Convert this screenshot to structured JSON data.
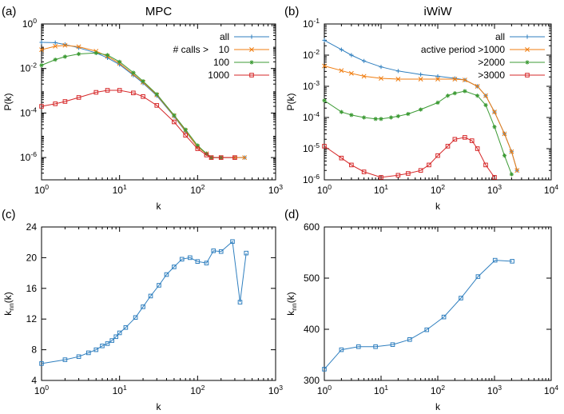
{
  "chart_data": [
    {
      "id": "a",
      "type": "line",
      "panel_label": "(a)",
      "title": "MPC",
      "xlabel": "k",
      "ylabel": "P(k)",
      "xscale": "log",
      "yscale": "log",
      "xlim": [
        1,
        1000
      ],
      "ylim": [
        1e-07,
        1
      ],
      "x_ticks": [
        {
          "v": 1,
          "b": "10",
          "e": "0"
        },
        {
          "v": 10,
          "b": "10",
          "e": "1"
        },
        {
          "v": 100,
          "b": "10",
          "e": "2"
        },
        {
          "v": 1000,
          "b": "10",
          "e": "3"
        }
      ],
      "y_ticks": [
        {
          "v": 1e-06,
          "b": "10",
          "e": "-6"
        },
        {
          "v": 0.0001,
          "b": "10",
          "e": "-4"
        },
        {
          "v": 0.01,
          "b": "10",
          "e": "-2"
        },
        {
          "v": 1,
          "b": "10",
          "e": "0"
        }
      ],
      "legend_title": "# calls >",
      "legend_position": "top-right",
      "series": [
        {
          "name": "all",
          "color": "#2f7fbf",
          "marker": "plus",
          "x": [
            1,
            1.5,
            2,
            3,
            5,
            7,
            10,
            15,
            20,
            30,
            50,
            70,
            100,
            130,
            150,
            200,
            300,
            400
          ],
          "y": [
            0.15,
            0.145,
            0.12,
            0.085,
            0.05,
            0.03,
            0.015,
            0.005,
            0.0022,
            0.0006,
            7e-05,
            1.5e-05,
            3e-06,
            1.5e-06,
            1e-06,
            1e-06,
            1e-06,
            1e-06
          ]
        },
        {
          "name": "10",
          "color": "#f07d10",
          "marker": "x",
          "x": [
            1,
            1.5,
            2,
            3,
            5,
            7,
            10,
            15,
            20,
            30,
            50,
            70,
            100,
            130,
            150,
            200,
            300,
            400
          ],
          "y": [
            0.07,
            0.1,
            0.11,
            0.095,
            0.06,
            0.035,
            0.017,
            0.0055,
            0.0024,
            0.00065,
            7.5e-05,
            1.6e-05,
            3e-06,
            1.5e-06,
            1e-06,
            1e-06,
            1e-06,
            1e-06
          ]
        },
        {
          "name": "100",
          "color": "#3d9b35",
          "marker": "star",
          "x": [
            1,
            1.5,
            2,
            3,
            5,
            7,
            10,
            15,
            20,
            30,
            50,
            70,
            100,
            130,
            150,
            200
          ],
          "y": [
            0.014,
            0.025,
            0.034,
            0.045,
            0.05,
            0.04,
            0.02,
            0.0065,
            0.0027,
            0.0007,
            8e-05,
            1.8e-05,
            3.5e-06,
            1.5e-06,
            1e-06,
            1e-06
          ]
        },
        {
          "name": "1000",
          "color": "#d62728",
          "marker": "square",
          "x": [
            1,
            1.5,
            2,
            3,
            5,
            7,
            10,
            15,
            20,
            30,
            50,
            70,
            100,
            130,
            150,
            200,
            300
          ],
          "y": [
            0.0002,
            0.00026,
            0.00033,
            0.0005,
            0.00085,
            0.00105,
            0.00105,
            0.0008,
            0.00055,
            0.00022,
            4e-05,
            1e-05,
            2.5e-06,
            1.3e-06,
            1e-06,
            1e-06,
            1e-06
          ]
        }
      ]
    },
    {
      "id": "b",
      "type": "line",
      "panel_label": "(b)",
      "title": "iWiW",
      "xlabel": "k",
      "ylabel": "P(k)",
      "xscale": "log",
      "yscale": "log",
      "xlim": [
        1,
        10000
      ],
      "ylim": [
        1e-06,
        0.1
      ],
      "x_ticks": [
        {
          "v": 1,
          "b": "10",
          "e": "0"
        },
        {
          "v": 10,
          "b": "10",
          "e": "1"
        },
        {
          "v": 100,
          "b": "10",
          "e": "2"
        },
        {
          "v": 1000,
          "b": "10",
          "e": "3"
        },
        {
          "v": 10000,
          "b": "10",
          "e": "4"
        }
      ],
      "y_ticks": [
        {
          "v": 1e-06,
          "b": "10",
          "e": "-6"
        },
        {
          "v": 1e-05,
          "b": "10",
          "e": "-5"
        },
        {
          "v": 0.0001,
          "b": "10",
          "e": "-4"
        },
        {
          "v": 0.001,
          "b": "10",
          "e": "-3"
        },
        {
          "v": 0.01,
          "b": "10",
          "e": "-2"
        },
        {
          "v": 0.1,
          "b": "10",
          "e": "-1"
        }
      ],
      "legend_title": "",
      "legend_position": "top-right",
      "series": [
        {
          "name": "all",
          "color": "#2f7fbf",
          "marker": "plus",
          "x": [
            1,
            2,
            3,
            5,
            10,
            20,
            50,
            100,
            200,
            300,
            500,
            700,
            1000,
            1500,
            2000,
            2500
          ],
          "y": [
            0.03,
            0.015,
            0.01,
            0.0065,
            0.0042,
            0.0031,
            0.0024,
            0.0021,
            0.0018,
            0.0016,
            0.001,
            0.0005,
            0.00015,
            3e-05,
            8e-06,
            2e-06
          ]
        },
        {
          "name": "active period >1000",
          "color": "#f07d10",
          "marker": "x",
          "x": [
            1,
            2,
            3,
            5,
            10,
            20,
            50,
            100,
            200,
            300,
            500,
            700,
            1000,
            1500,
            2000,
            2500
          ],
          "y": [
            0.0045,
            0.0032,
            0.0026,
            0.0021,
            0.0018,
            0.0017,
            0.0017,
            0.0017,
            0.0017,
            0.0016,
            0.001,
            0.0005,
            0.00015,
            3e-05,
            8e-06,
            2e-06
          ]
        },
        {
          "name": ">2000",
          "color": "#3d9b35",
          "marker": "star",
          "x": [
            1,
            2,
            3,
            5,
            8,
            10,
            15,
            20,
            30,
            50,
            100,
            150,
            200,
            300,
            500,
            700,
            1000,
            1500,
            2000
          ],
          "y": [
            0.00035,
            0.00015,
            0.00012,
            0.0001,
            9e-05,
            9e-05,
            0.0001,
            0.00011,
            0.00013,
            0.00018,
            0.0003,
            0.0005,
            0.0006,
            0.0007,
            0.0005,
            0.00025,
            5e-05,
            6e-06,
            1.5e-06
          ]
        },
        {
          "name": ">3000",
          "color": "#d62728",
          "marker": "square",
          "x": [
            1,
            2,
            3,
            5,
            10,
            20,
            30,
            50,
            70,
            100,
            150,
            200,
            300,
            400,
            500,
            700,
            1000
          ],
          "y": [
            1.2e-05,
            5e-06,
            3e-06,
            1.8e-06,
            1.2e-06,
            1.4e-06,
            1.6e-06,
            2e-06,
            3e-06,
            6e-06,
            1.2e-05,
            2e-05,
            2.3e-05,
            1.8e-05,
            1e-05,
            3e-06,
            1.2e-06
          ]
        }
      ]
    },
    {
      "id": "c",
      "type": "line",
      "panel_label": "(c)",
      "title": "",
      "xlabel": "k",
      "ylabel": "knn(k)",
      "ylabel_main": "k",
      "ylabel_sub": "nn",
      "ylabel_tail": "(k)",
      "xscale": "log",
      "yscale": "linear",
      "xlim": [
        1,
        1000
      ],
      "ylim": [
        4,
        24
      ],
      "x_ticks": [
        {
          "v": 1,
          "b": "10",
          "e": "0"
        },
        {
          "v": 10,
          "b": "10",
          "e": "1"
        },
        {
          "v": 100,
          "b": "10",
          "e": "2"
        },
        {
          "v": 1000,
          "b": "10",
          "e": "3"
        }
      ],
      "y_ticks": [
        {
          "v": 4,
          "t": "4"
        },
        {
          "v": 8,
          "t": "8"
        },
        {
          "v": 12,
          "t": "12"
        },
        {
          "v": 16,
          "t": "16"
        },
        {
          "v": 20,
          "t": "20"
        },
        {
          "v": 24,
          "t": "24"
        }
      ],
      "series": [
        {
          "name": "knn",
          "color": "#2f7fbf",
          "marker": "square",
          "x": [
            1,
            2,
            3,
            4,
            5,
            6,
            7,
            8,
            9,
            10,
            12,
            16,
            20,
            25,
            32,
            40,
            50,
            63,
            80,
            100,
            130,
            160,
            200,
            280,
            350,
            420
          ],
          "y": [
            6.2,
            6.7,
            7.1,
            7.6,
            8.0,
            8.5,
            8.8,
            9.2,
            9.7,
            10.2,
            10.9,
            12.2,
            13.6,
            15.0,
            16.4,
            17.8,
            18.8,
            19.8,
            20.0,
            19.5,
            19.3,
            20.9,
            20.8,
            22.1,
            14.2,
            20.6
          ]
        }
      ]
    },
    {
      "id": "d",
      "type": "line",
      "panel_label": "(d)",
      "title": "",
      "xlabel": "k",
      "ylabel": "knn(k)",
      "ylabel_main": "k",
      "ylabel_sub": "nn",
      "ylabel_tail": "(k)",
      "xscale": "log",
      "yscale": "linear",
      "xlim": [
        1,
        10000
      ],
      "ylim": [
        300,
        600
      ],
      "x_ticks": [
        {
          "v": 1,
          "b": "10",
          "e": "0"
        },
        {
          "v": 10,
          "b": "10",
          "e": "1"
        },
        {
          "v": 100,
          "b": "10",
          "e": "2"
        },
        {
          "v": 1000,
          "b": "10",
          "e": "3"
        },
        {
          "v": 10000,
          "b": "10",
          "e": "4"
        }
      ],
      "y_ticks": [
        {
          "v": 300,
          "t": "300"
        },
        {
          "v": 400,
          "t": "400"
        },
        {
          "v": 500,
          "t": "500"
        },
        {
          "v": 600,
          "t": "600"
        }
      ],
      "series": [
        {
          "name": "knn",
          "color": "#2f7fbf",
          "marker": "square",
          "x": [
            1,
            2,
            4,
            8,
            16,
            32,
            64,
            128,
            256,
            512,
            1024,
            2048
          ],
          "y": [
            322,
            360,
            366,
            366,
            370,
            380,
            399,
            424,
            461,
            503,
            535,
            533
          ]
        }
      ]
    }
  ]
}
